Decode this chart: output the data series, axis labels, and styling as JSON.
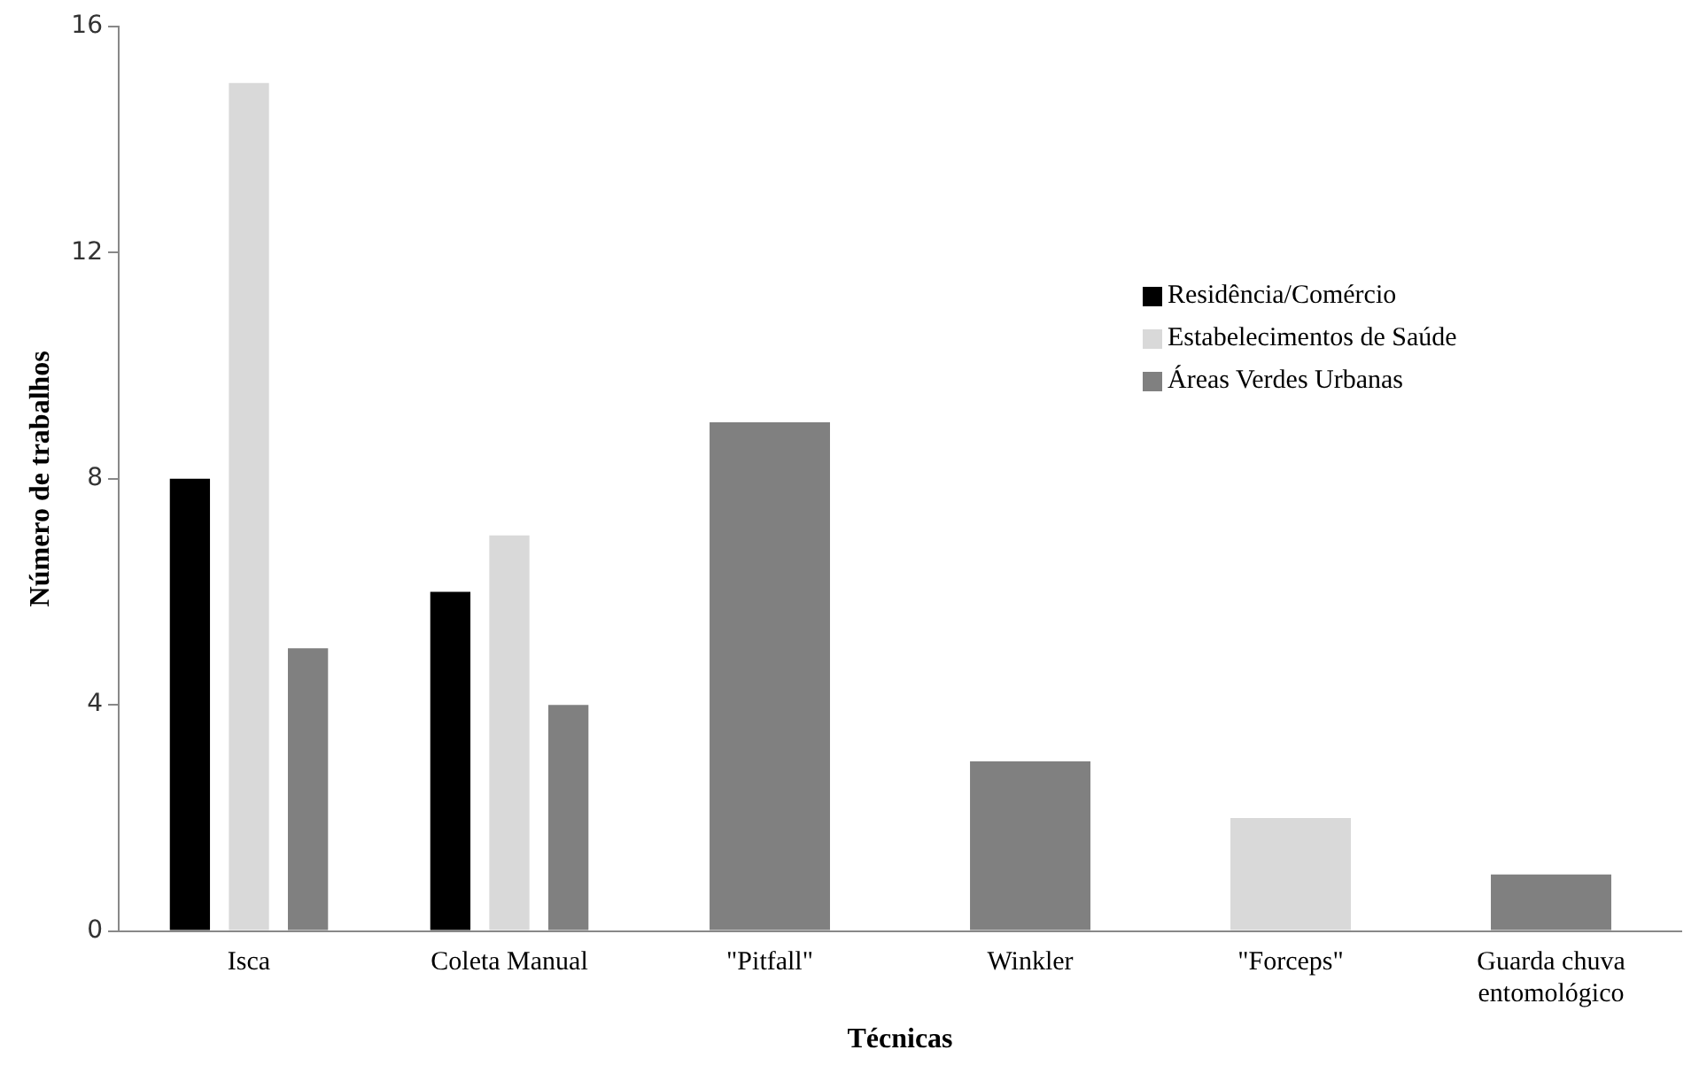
{
  "chart_data": {
    "type": "bar",
    "xlabel": "Técnicas",
    "ylabel": "Número de trabalhos",
    "categories": [
      "Isca",
      "Coleta Manual",
      "\"Pitfall\"",
      "Winkler",
      "\"Forceps\"",
      "Guarda chuva entomológico"
    ],
    "series": [
      {
        "name": "Residência/Comércio",
        "color": "#000000",
        "values": [
          8,
          6,
          null,
          null,
          null,
          null
        ]
      },
      {
        "name": "Estabelecimentos de Saúde",
        "color": "#d9d9d9",
        "values": [
          15,
          7,
          null,
          null,
          2,
          null
        ]
      },
      {
        "name": "Áreas Verdes Urbanas",
        "color": "#808080",
        "values": [
          5,
          4,
          9,
          3,
          null,
          1
        ]
      }
    ],
    "ylim": [
      0,
      16
    ],
    "yticks": [
      0,
      4,
      8,
      12,
      16
    ],
    "grid": false,
    "legend": "right"
  }
}
